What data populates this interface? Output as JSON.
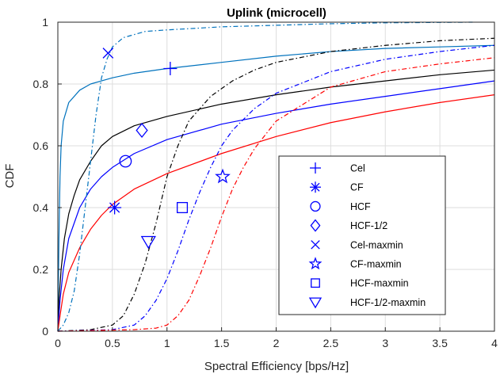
{
  "chart_data": {
    "type": "line",
    "title": "Uplink (microcell)",
    "xlabel": "Spectral Efficiency [bps/Hz]",
    "ylabel": "CDF",
    "xlim": [
      0,
      4
    ],
    "ylim": [
      0,
      1
    ],
    "x_ticks": [
      "0",
      "0.5",
      "1",
      "1.5",
      "2",
      "2.5",
      "3",
      "3.5",
      "4"
    ],
    "y_ticks": [
      "0",
      "0.2",
      "0.4",
      "0.6",
      "0.8",
      "1"
    ],
    "grid": true,
    "legend_position": "bottom-right",
    "series": [
      {
        "name": "Cel",
        "color": "#0072BD",
        "dash": "solid",
        "marker": "plus",
        "marker_at": [
          1.03,
          0.85
        ],
        "points": [
          [
            0,
            0
          ],
          [
            0.01,
            0.3
          ],
          [
            0.02,
            0.5
          ],
          [
            0.03,
            0.6
          ],
          [
            0.05,
            0.68
          ],
          [
            0.1,
            0.74
          ],
          [
            0.2,
            0.78
          ],
          [
            0.3,
            0.8
          ],
          [
            0.5,
            0.82
          ],
          [
            0.7,
            0.835
          ],
          [
            1.0,
            0.85
          ],
          [
            1.5,
            0.87
          ],
          [
            2.0,
            0.89
          ],
          [
            2.5,
            0.905
          ],
          [
            3.0,
            0.915
          ],
          [
            3.5,
            0.92
          ],
          [
            4.0,
            0.925
          ]
        ]
      },
      {
        "name": "CF",
        "color": "#000000",
        "dash": "solid",
        "marker": "asterisk",
        "marker_at": [
          0.52,
          0.4
        ],
        "points": [
          [
            0,
            0
          ],
          [
            0.01,
            0.1
          ],
          [
            0.03,
            0.2
          ],
          [
            0.06,
            0.3
          ],
          [
            0.1,
            0.38
          ],
          [
            0.15,
            0.44
          ],
          [
            0.2,
            0.49
          ],
          [
            0.3,
            0.55
          ],
          [
            0.4,
            0.6
          ],
          [
            0.5,
            0.63
          ],
          [
            0.7,
            0.665
          ],
          [
            1.0,
            0.695
          ],
          [
            1.5,
            0.735
          ],
          [
            2.0,
            0.765
          ],
          [
            2.5,
            0.79
          ],
          [
            3.0,
            0.81
          ],
          [
            3.5,
            0.83
          ],
          [
            4.0,
            0.845
          ]
        ]
      },
      {
        "name": "HCF",
        "color": "#0000FF",
        "dash": "solid",
        "marker": "circle",
        "marker_at": [
          0.62,
          0.55
        ],
        "points": [
          [
            0,
            0
          ],
          [
            0.02,
            0.1
          ],
          [
            0.05,
            0.2
          ],
          [
            0.1,
            0.3
          ],
          [
            0.2,
            0.4
          ],
          [
            0.3,
            0.46
          ],
          [
            0.4,
            0.5
          ],
          [
            0.5,
            0.53
          ],
          [
            0.7,
            0.575
          ],
          [
            1.0,
            0.62
          ],
          [
            1.5,
            0.67
          ],
          [
            2.0,
            0.705
          ],
          [
            2.5,
            0.735
          ],
          [
            3.0,
            0.76
          ],
          [
            3.5,
            0.785
          ],
          [
            4.0,
            0.81
          ]
        ]
      },
      {
        "name": "HCF-1/2",
        "color": "#FF0000",
        "dash": "solid",
        "marker": "diamond",
        "marker_at": [
          0.77,
          0.65
        ],
        "points": [
          [
            0,
            0
          ],
          [
            0.02,
            0.05
          ],
          [
            0.05,
            0.12
          ],
          [
            0.1,
            0.19
          ],
          [
            0.2,
            0.27
          ],
          [
            0.3,
            0.33
          ],
          [
            0.4,
            0.375
          ],
          [
            0.5,
            0.41
          ],
          [
            0.7,
            0.46
          ],
          [
            1.0,
            0.51
          ],
          [
            1.5,
            0.575
          ],
          [
            2.0,
            0.63
          ],
          [
            2.5,
            0.675
          ],
          [
            3.0,
            0.71
          ],
          [
            3.5,
            0.74
          ],
          [
            4.0,
            0.765
          ]
        ]
      },
      {
        "name": "Cel-maxmin",
        "color": "#0072BD",
        "dash": "dashdot",
        "marker": "x",
        "marker_at": [
          0.46,
          0.9
        ],
        "points": [
          [
            0,
            0
          ],
          [
            0.05,
            0.02
          ],
          [
            0.1,
            0.06
          ],
          [
            0.15,
            0.13
          ],
          [
            0.2,
            0.25
          ],
          [
            0.25,
            0.4
          ],
          [
            0.3,
            0.55
          ],
          [
            0.35,
            0.7
          ],
          [
            0.4,
            0.82
          ],
          [
            0.45,
            0.88
          ],
          [
            0.5,
            0.92
          ],
          [
            0.6,
            0.95
          ],
          [
            0.8,
            0.97
          ],
          [
            1.0,
            0.975
          ],
          [
            1.5,
            0.985
          ],
          [
            2.0,
            0.99
          ],
          [
            2.5,
            0.995
          ],
          [
            3.0,
            0.998
          ],
          [
            3.8,
            1.0
          ]
        ]
      },
      {
        "name": "CF-maxmin",
        "color": "#000000",
        "dash": "dashdot",
        "marker": "star",
        "marker_at": [
          1.51,
          0.5
        ],
        "points": [
          [
            0,
            0
          ],
          [
            0.3,
            0.005
          ],
          [
            0.5,
            0.02
          ],
          [
            0.6,
            0.05
          ],
          [
            0.7,
            0.12
          ],
          [
            0.8,
            0.22
          ],
          [
            0.9,
            0.35
          ],
          [
            1.0,
            0.5
          ],
          [
            1.1,
            0.6
          ],
          [
            1.2,
            0.68
          ],
          [
            1.4,
            0.76
          ],
          [
            1.6,
            0.81
          ],
          [
            1.8,
            0.845
          ],
          [
            2.0,
            0.87
          ],
          [
            2.5,
            0.905
          ],
          [
            3.0,
            0.925
          ],
          [
            3.5,
            0.94
          ],
          [
            4.0,
            0.948
          ]
        ]
      },
      {
        "name": "HCF-maxmin",
        "color": "#0000FF",
        "dash": "dashdot",
        "marker": "square",
        "marker_at": [
          1.14,
          0.4
        ],
        "points": [
          [
            0,
            0
          ],
          [
            0.5,
            0.005
          ],
          [
            0.7,
            0.02
          ],
          [
            0.8,
            0.05
          ],
          [
            0.9,
            0.1
          ],
          [
            1.0,
            0.17
          ],
          [
            1.1,
            0.26
          ],
          [
            1.2,
            0.36
          ],
          [
            1.3,
            0.45
          ],
          [
            1.4,
            0.53
          ],
          [
            1.5,
            0.6
          ],
          [
            1.6,
            0.65
          ],
          [
            1.8,
            0.72
          ],
          [
            2.0,
            0.77
          ],
          [
            2.5,
            0.84
          ],
          [
            3.0,
            0.88
          ],
          [
            3.5,
            0.905
          ],
          [
            4.0,
            0.925
          ]
        ]
      },
      {
        "name": "HCF-1/2-maxmin",
        "color": "#FF0000",
        "dash": "dashdot",
        "marker": "triangle-down",
        "marker_at": [
          0.83,
          0.29
        ],
        "points": [
          [
            0,
            0
          ],
          [
            0.7,
            0.005
          ],
          [
            0.9,
            0.01
          ],
          [
            1.0,
            0.02
          ],
          [
            1.1,
            0.05
          ],
          [
            1.2,
            0.1
          ],
          [
            1.3,
            0.18
          ],
          [
            1.4,
            0.27
          ],
          [
            1.5,
            0.37
          ],
          [
            1.6,
            0.46
          ],
          [
            1.7,
            0.53
          ],
          [
            1.8,
            0.59
          ],
          [
            2.0,
            0.68
          ],
          [
            2.5,
            0.79
          ],
          [
            3.0,
            0.84
          ],
          [
            3.5,
            0.865
          ],
          [
            4.0,
            0.885
          ]
        ]
      }
    ]
  }
}
